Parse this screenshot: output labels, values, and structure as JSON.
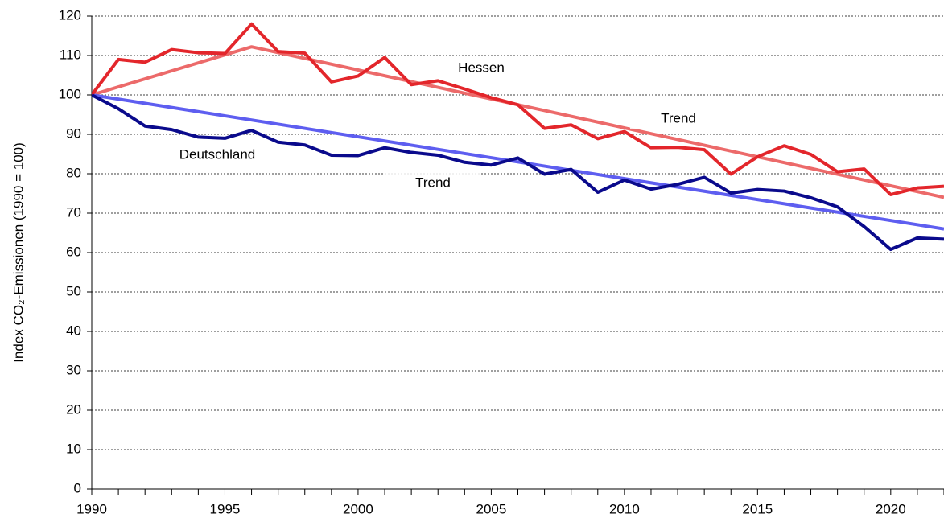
{
  "chart_data": {
    "type": "line",
    "y_label": "Index CO₂-Emissionen (1990 = 100)",
    "x": [
      1990,
      1991,
      1992,
      1993,
      1994,
      1995,
      1996,
      1997,
      1998,
      1999,
      2000,
      2001,
      2002,
      2003,
      2004,
      2005,
      2006,
      2007,
      2008,
      2009,
      2010,
      2011,
      2012,
      2013,
      2014,
      2015,
      2016,
      2017,
      2018,
      2019,
      2020,
      2021,
      2022
    ],
    "series": [
      {
        "name": "Hessen",
        "color": "#e3262b",
        "values": [
          100,
          109,
          108.3,
          111.5,
          110.7,
          110.5,
          118,
          111,
          110.6,
          103.3,
          104.8,
          109.5,
          102.6,
          103.6,
          101.5,
          99.3,
          97.5,
          91.5,
          92.4,
          88.9,
          90.7,
          86.6,
          86.7,
          86.1,
          79.9,
          84.3,
          87.1,
          84.9,
          80.5,
          81.2,
          74.7,
          76.4,
          76.8
        ]
      },
      {
        "name": "Deutschland",
        "color": "#0a0a8c",
        "values": [
          100,
          96.5,
          92.1,
          91.2,
          89.3,
          89,
          91,
          88,
          87.3,
          84.7,
          84.6,
          86.6,
          85.4,
          84.7,
          82.9,
          82.2,
          84,
          79.9,
          81.1,
          75.3,
          78.4,
          76.1,
          77.3,
          79.1,
          75.1,
          76,
          75.6,
          73.9,
          71.6,
          66.6,
          60.8,
          63.7,
          63.4
        ]
      },
      {
        "name": "Trend",
        "color": "#ec6a6a",
        "x": [
          1990,
          1996,
          2022
        ],
        "values": [
          100,
          112.2,
          74
        ]
      },
      {
        "name": "Trend",
        "color": "#5e5ef0",
        "x": [
          1990,
          2022
        ],
        "values": [
          100,
          66
        ]
      }
    ],
    "xlim": [
      1990,
      2022
    ],
    "xticks": [
      1990,
      1995,
      2000,
      2005,
      2010,
      2015,
      2020
    ],
    "xminorticks": [
      1991,
      1992,
      1993,
      1994,
      1996,
      1997,
      1998,
      1999,
      2001,
      2002,
      2003,
      2004,
      2006,
      2007,
      2008,
      2009,
      2011,
      2012,
      2013,
      2014,
      2016,
      2017,
      2018,
      2019,
      2021,
      2022
    ],
    "ylim": [
      0,
      120
    ],
    "yticks": [
      0,
      10,
      20,
      30,
      40,
      50,
      60,
      70,
      80,
      90,
      100,
      110,
      120
    ],
    "grid": true
  }
}
